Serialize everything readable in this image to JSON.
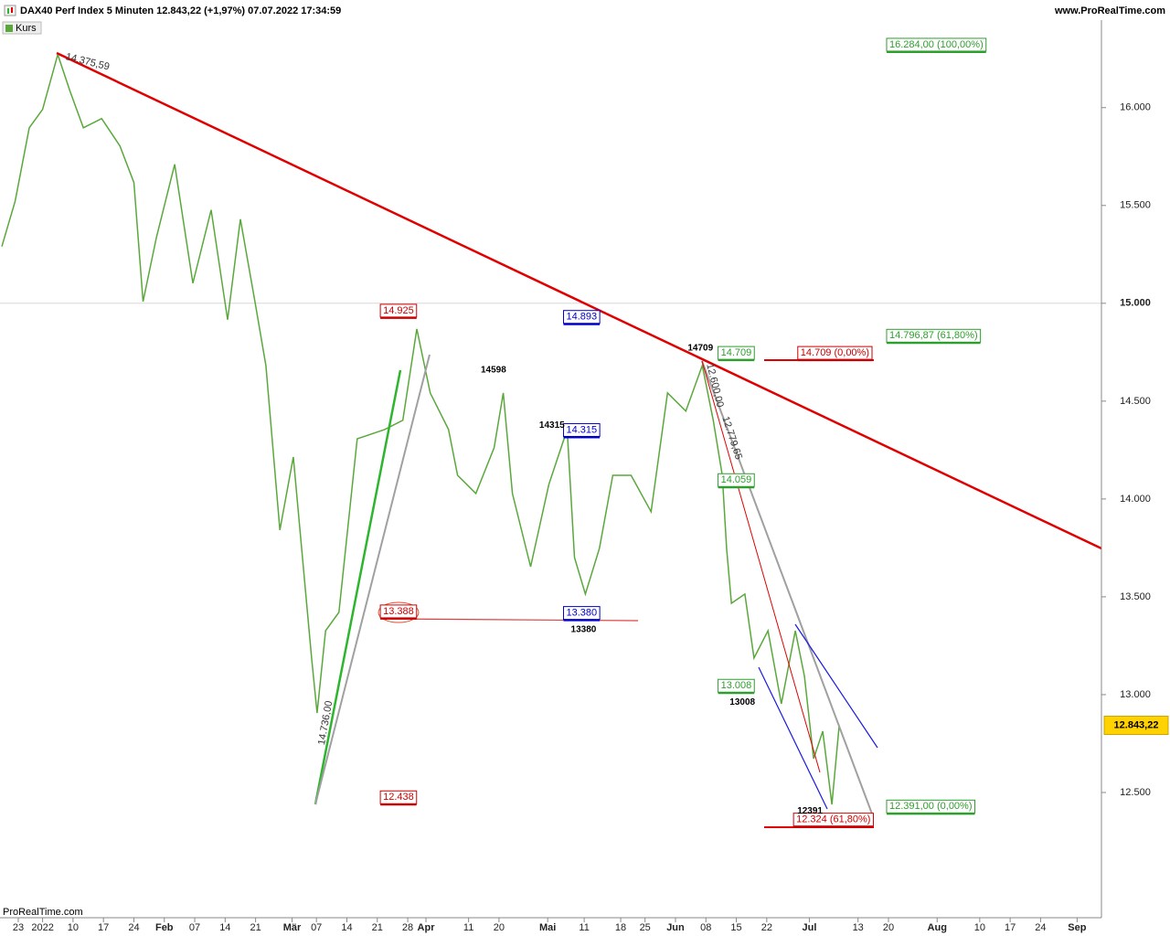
{
  "header": {
    "title": "DAX40 Perf Index 5 Minuten 12.843,22 (+1,97%) 07.07.2022 17:34:59",
    "site": "www.ProRealTime.com",
    "watermark": "ProRealTime.com"
  },
  "chart_data": {
    "type": "line",
    "series": [
      {
        "name": "Kurs",
        "color": "#5aa83c",
        "x": [
          -6.7,
          -4.5,
          -2.2,
          0,
          2.5,
          4.5,
          6.7,
          9.7,
          12.7,
          15,
          16.5,
          18.7,
          21.7,
          24.7,
          27.7,
          30.4,
          32.5,
          34.9,
          36.7,
          39,
          41.2,
          44.2,
          45.1,
          46.5,
          48.7,
          51.7,
          56.2,
          59.2,
          61.5,
          63.7,
          66.7,
          68.2,
          71.2,
          74.2,
          75.7,
          77.2,
          80.2,
          83.2,
          86.2,
          87.4,
          89.2,
          91.5,
          93.7,
          96.7,
          100,
          102.7,
          105.7,
          108.4,
          110.2,
          111.7,
          112.4,
          113.2,
          115.4,
          116.9,
          119.2,
          121.4,
          123.7,
          125.2,
          126.7,
          128.2,
          129.7,
          130.9
        ],
        "values": [
          15290,
          15523,
          15897,
          15991,
          16271,
          16084,
          15897,
          15944,
          15804,
          15617,
          15009,
          15336,
          15710,
          15103,
          15477,
          14916,
          15430,
          15009,
          14682,
          13841,
          14215,
          13187,
          12906,
          13327,
          13421,
          14308,
          14355,
          14402,
          14869,
          14542,
          14355,
          14121,
          14028,
          14262,
          14542,
          14028,
          13654,
          14075,
          14355,
          13701,
          13514,
          13748,
          14121,
          14121,
          13935,
          14542,
          14449,
          14682,
          14402,
          14121,
          13748,
          13467,
          13514,
          13187,
          13327,
          12953,
          13327,
          13093,
          12673,
          12813,
          12439,
          12843.22
        ]
      }
    ],
    "xlim": [
      -7,
      174
    ],
    "ylim": [
      11860,
      16550
    ],
    "xticks": [
      {
        "value": -4,
        "label": "23"
      },
      {
        "value": 0,
        "label": "2022"
      },
      {
        "value": 5,
        "label": "10"
      },
      {
        "value": 10,
        "label": "17"
      },
      {
        "value": 15,
        "label": "24"
      },
      {
        "value": 20,
        "label": "Feb"
      },
      {
        "value": 25,
        "label": "07"
      },
      {
        "value": 30,
        "label": "14"
      },
      {
        "value": 35,
        "label": "21"
      },
      {
        "value": 41,
        "label": "Mär"
      },
      {
        "value": 45,
        "label": "07"
      },
      {
        "value": 50,
        "label": "14"
      },
      {
        "value": 55,
        "label": "21"
      },
      {
        "value": 60,
        "label": "28"
      },
      {
        "value": 63,
        "label": "Apr"
      },
      {
        "value": 70,
        "label": "11"
      },
      {
        "value": 75,
        "label": "20"
      },
      {
        "value": 83,
        "label": "Mai"
      },
      {
        "value": 89,
        "label": "11"
      },
      {
        "value": 95,
        "label": "18"
      },
      {
        "value": 99,
        "label": "25"
      },
      {
        "value": 104,
        "label": "Jun"
      },
      {
        "value": 109,
        "label": "08"
      },
      {
        "value": 114,
        "label": "15"
      },
      {
        "value": 119,
        "label": "22"
      },
      {
        "value": 126,
        "label": "Jul"
      },
      {
        "value": 134,
        "label": "13"
      },
      {
        "value": 139,
        "label": "20"
      },
      {
        "value": 147,
        "label": "Aug"
      },
      {
        "value": 154,
        "label": "10"
      },
      {
        "value": 159,
        "label": "17"
      },
      {
        "value": 164,
        "label": "24"
      },
      {
        "value": 170,
        "label": "Sep"
      }
    ],
    "yticks": [
      {
        "value": 12500,
        "label": "12.500"
      },
      {
        "value": 13000,
        "label": "13.000"
      },
      {
        "value": 13500,
        "label": "13.500"
      },
      {
        "value": 14000,
        "label": "14.000"
      },
      {
        "value": 14500,
        "label": "14.500"
      },
      {
        "value": 15000,
        "label": "15.000"
      },
      {
        "value": 15500,
        "label": "15.500"
      },
      {
        "value": 16000,
        "label": "16.000"
      }
    ],
    "grid_level": 15000,
    "last_price": {
      "value": 12843.22,
      "label": "12.843,22"
    },
    "boxes": [
      {
        "label": "14.925",
        "value": 14925,
        "x": 55.5,
        "color": "#cc0000"
      },
      {
        "label": "13.388",
        "value": 13388,
        "x": 55.5,
        "color": "#cc0000"
      },
      {
        "label": "12.438",
        "value": 12438,
        "x": 55.5,
        "color": "#cc0000"
      },
      {
        "label": "14.893",
        "value": 14893,
        "x": 85.6,
        "color": "#0000cc"
      },
      {
        "label": "14.315",
        "value": 14315,
        "x": 85.6,
        "color": "#0000cc"
      },
      {
        "label": "13.380",
        "value": 13380,
        "x": 85.6,
        "color": "#0000cc"
      },
      {
        "label": "14.709",
        "value": 14709,
        "x": 111,
        "color": "#2e9e2e"
      },
      {
        "label": "14.059",
        "value": 14059,
        "x": 111,
        "color": "#2e9e2e"
      },
      {
        "label": "13.008",
        "value": 13008,
        "x": 111,
        "color": "#2e9e2e"
      },
      {
        "label": "14.709 (0,00%)",
        "value": 14709,
        "x": 124.1,
        "color": "#cc0000"
      },
      {
        "label": "12.324 (61,80%)",
        "value": 12324,
        "x": 123.4,
        "color": "#cc0000"
      },
      {
        "label": "16.284,00 (100,00%)",
        "value": 16284,
        "x": 138.7,
        "color": "#2e9e2e"
      },
      {
        "label": "14.796,87 (61,80%)",
        "value": 14796.87,
        "x": 138.7,
        "color": "#2e9e2e"
      },
      {
        "label": "12.391,00 (0,00%)",
        "value": 12391,
        "x": 138.7,
        "color": "#2e9e2e"
      }
    ],
    "levels": [
      {
        "value": 14709,
        "x": 108.1,
        "position": "above"
      },
      {
        "value": 14598,
        "x": 74.1,
        "position": "above"
      },
      {
        "value": 14315,
        "x": 83.7,
        "position": "above"
      },
      {
        "value": 13380,
        "x": 88.9,
        "position": "below"
      },
      {
        "value": 13008,
        "x": 115,
        "position": "below"
      },
      {
        "value": 12391,
        "x": 126.1,
        "position": "center"
      }
    ],
    "line_labels": [
      "14.375,59",
      "12.600,00",
      "12.779,65",
      "14.736,00"
    ]
  }
}
